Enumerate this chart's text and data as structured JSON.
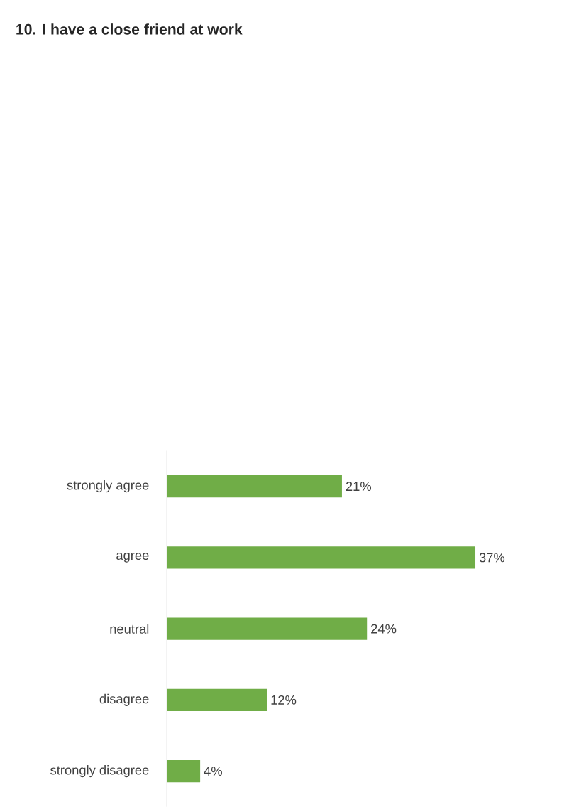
{
  "chart_data": {
    "type": "bar",
    "orientation": "horizontal",
    "title": "10.  I have a close friend at work",
    "categories": [
      "strongly agree",
      "agree",
      "neutral",
      "disagree",
      "strongly disagree"
    ],
    "values": [
      21,
      37,
      24,
      12,
      4
    ],
    "value_labels": [
      "21%",
      "37%",
      "24%",
      "12%",
      "4%"
    ],
    "color": "#70ad47"
  }
}
